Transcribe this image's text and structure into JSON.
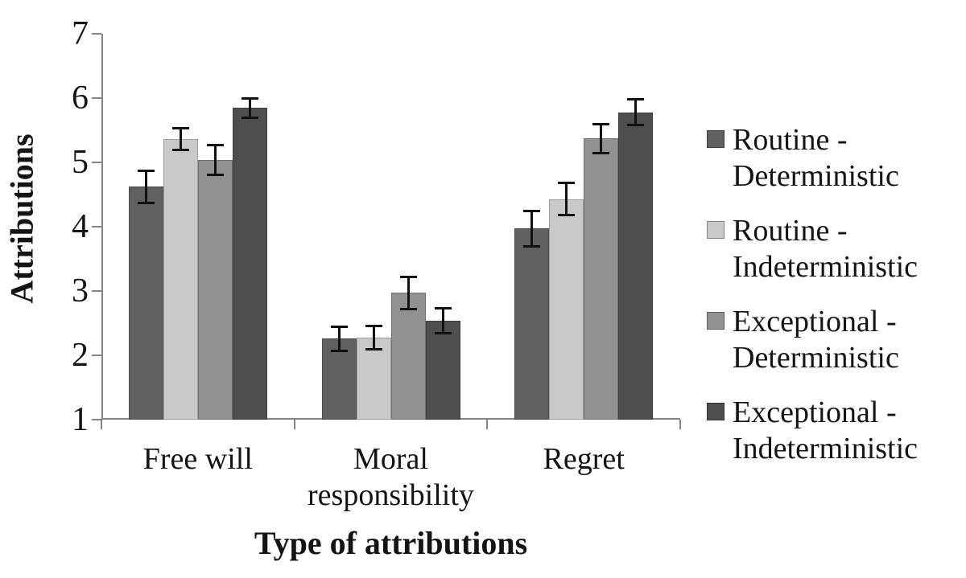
{
  "chart_data": {
    "type": "bar",
    "title": "",
    "xlabel": "Type of attributions",
    "ylabel": "Attributions",
    "ylim": [
      1,
      7
    ],
    "yticks": [
      1,
      2,
      3,
      4,
      5,
      6,
      7
    ],
    "grid": false,
    "error_bars": true,
    "legend_position": "right",
    "axis_color": "#848484",
    "errorbar_color": "#111111",
    "text_color": "#141414",
    "categories": [
      "Free will",
      "Moral responsibility",
      "Regret"
    ],
    "series": [
      {
        "name": "Routine - Deterministic",
        "color": "#606060",
        "values": [
          4.62,
          2.26,
          3.97
        ],
        "errors": [
          0.25,
          0.19,
          0.27
        ]
      },
      {
        "name": "Routine - Indeterministic",
        "color": "#c9c9c9",
        "values": [
          5.36,
          2.28,
          4.43
        ],
        "errors": [
          0.17,
          0.18,
          0.25
        ]
      },
      {
        "name": "Exceptional - Deterministic",
        "color": "#919191",
        "values": [
          5.04,
          2.97,
          5.37
        ],
        "errors": [
          0.23,
          0.25,
          0.22
        ]
      },
      {
        "name": "Exceptional - Indeterministic",
        "color": "#4e4e4e",
        "values": [
          5.85,
          2.54,
          5.78
        ],
        "errors": [
          0.15,
          0.19,
          0.2
        ]
      }
    ]
  }
}
